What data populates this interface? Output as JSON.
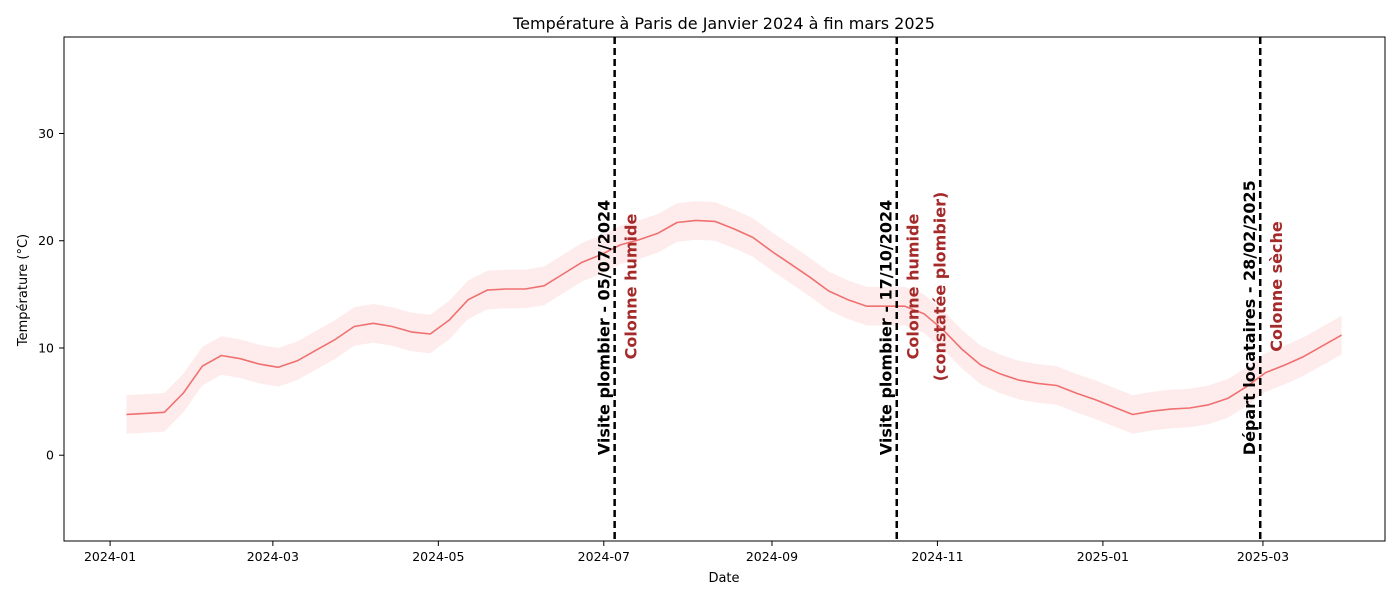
{
  "chart_data": {
    "type": "line",
    "title": "Température à Paris de Janvier 2024 à fin mars 2025",
    "xlabel": "Date",
    "ylabel": "Température (°C)",
    "xlim": [
      "2023-12-15",
      "2025-04-15"
    ],
    "ylim": [
      -8,
      39
    ],
    "x_ticks": [
      "2024-01",
      "2024-03",
      "2024-05",
      "2024-07",
      "2024-09",
      "2024-11",
      "2025-01",
      "2025-03"
    ],
    "y_ticks": [
      0,
      10,
      20,
      30
    ],
    "grid": false,
    "series": [
      {
        "color": "#f07070",
        "band_color": "#fde6e6",
        "band_half_width": 1.8,
        "x": [
          "2024-01-07",
          "2024-01-14",
          "2024-01-21",
          "2024-01-28",
          "2024-02-04",
          "2024-02-11",
          "2024-02-18",
          "2024-02-25",
          "2024-03-03",
          "2024-03-10",
          "2024-03-17",
          "2024-03-24",
          "2024-03-31",
          "2024-04-07",
          "2024-04-14",
          "2024-04-21",
          "2024-04-28",
          "2024-05-05",
          "2024-05-12",
          "2024-05-19",
          "2024-05-26",
          "2024-06-02",
          "2024-06-09",
          "2024-06-16",
          "2024-06-23",
          "2024-06-30",
          "2024-07-07",
          "2024-07-14",
          "2024-07-21",
          "2024-07-28",
          "2024-08-04",
          "2024-08-11",
          "2024-08-18",
          "2024-08-25",
          "2024-09-01",
          "2024-09-08",
          "2024-09-15",
          "2024-09-22",
          "2024-09-29",
          "2024-10-06",
          "2024-10-13",
          "2024-10-20",
          "2024-10-27",
          "2024-11-03",
          "2024-11-10",
          "2024-11-17",
          "2024-11-24",
          "2024-12-01",
          "2024-12-08",
          "2024-12-15",
          "2024-12-22",
          "2024-12-29",
          "2025-01-05",
          "2025-01-12",
          "2025-01-19",
          "2025-01-26",
          "2025-02-02",
          "2025-02-09",
          "2025-02-16",
          "2025-02-23",
          "2025-03-02",
          "2025-03-09",
          "2025-03-16",
          "2025-03-23",
          "2025-03-30"
        ],
        "y": [
          3.8,
          3.9,
          4.0,
          5.8,
          8.3,
          9.3,
          9.0,
          8.5,
          8.2,
          8.8,
          9.8,
          10.8,
          12.0,
          12.3,
          12.0,
          11.5,
          11.3,
          12.6,
          14.5,
          15.4,
          15.5,
          15.5,
          15.8,
          16.9,
          18.0,
          18.7,
          19.6,
          20.1,
          20.7,
          21.7,
          21.9,
          21.8,
          21.1,
          20.3,
          19.0,
          17.8,
          16.6,
          15.3,
          14.5,
          13.9,
          13.9,
          13.9,
          13.2,
          11.7,
          9.9,
          8.4,
          7.6,
          7.0,
          6.7,
          6.5,
          5.8,
          5.2,
          4.5,
          3.8,
          4.1,
          4.3,
          4.4,
          4.7,
          5.3,
          6.4,
          7.7,
          8.4,
          9.2,
          10.2,
          11.2
        ]
      }
    ],
    "annotations": [
      {
        "date": "2024-07-05",
        "label": "Visite plombier   - 05/07/2024",
        "sub_lines": [
          "Colonne humide"
        ]
      },
      {
        "date": "2024-10-17",
        "label": "Visite plombier   - 17/10/2024",
        "sub_lines": [
          "Colonne humide",
          "(constatée plombier)"
        ]
      },
      {
        "date": "2025-02-28",
        "label": "Départ locataires - 28/02/2025",
        "sub_lines": [
          "Colonne sèche"
        ]
      }
    ]
  }
}
